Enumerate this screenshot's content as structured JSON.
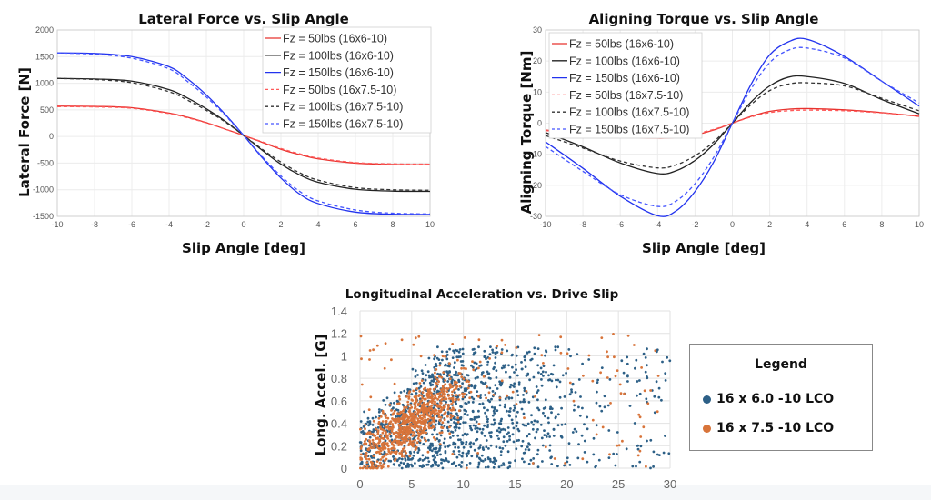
{
  "chart_data": [
    {
      "type": "line",
      "title": "Lateral Force vs. Slip Angle",
      "xlabel": "Slip Angle [deg]",
      "ylabel": "Lateral Force [N]",
      "xlim": [
        -10,
        10
      ],
      "ylim": [
        -1500,
        2000
      ],
      "xticks": [
        -10,
        -8,
        -6,
        -4,
        -2,
        0,
        2,
        4,
        6,
        8,
        10
      ],
      "yticks": [
        -1500,
        -1000,
        -500,
        0,
        500,
        1000,
        1500,
        2000
      ],
      "grid": true,
      "legend_position": "top-right",
      "x": [
        -10,
        -8,
        -6,
        -4,
        -3,
        -2,
        -1,
        0,
        1,
        2,
        3,
        4,
        6,
        8,
        10
      ],
      "series": [
        {
          "name": "Fz = 50lbs (16x6-10)",
          "color": "#e8332f",
          "dash": false,
          "values": [
            570,
            565,
            540,
            440,
            360,
            260,
            140,
            20,
            -110,
            -240,
            -340,
            -420,
            -500,
            -525,
            -530
          ]
        },
        {
          "name": "Fz = 100lbs (16x6-10)",
          "color": "#222222",
          "dash": false,
          "values": [
            1090,
            1080,
            1040,
            880,
            720,
            520,
            290,
            20,
            -260,
            -520,
            -720,
            -860,
            -990,
            -1025,
            -1030
          ]
        },
        {
          "name": "Fz = 150lbs (16x6-10)",
          "color": "#2233ee",
          "dash": false,
          "values": [
            1570,
            1560,
            1500,
            1310,
            1080,
            780,
            420,
            20,
            -400,
            -780,
            -1080,
            -1260,
            -1420,
            -1460,
            -1465
          ]
        },
        {
          "name": "Fz = 50lbs (16x7.5-10)",
          "color": "#ff5a5a",
          "dash": true,
          "values": [
            560,
            555,
            530,
            430,
            350,
            255,
            140,
            20,
            -100,
            -225,
            -325,
            -405,
            -490,
            -515,
            -520
          ]
        },
        {
          "name": "Fz = 100lbs (16x7.5-10)",
          "color": "#333333",
          "dash": true,
          "values": [
            1090,
            1070,
            1010,
            840,
            680,
            490,
            275,
            20,
            -240,
            -480,
            -680,
            -820,
            -960,
            -1000,
            -1010
          ]
        },
        {
          "name": "Fz = 150lbs (16x7.5-10)",
          "color": "#4455ff",
          "dash": true,
          "values": [
            1570,
            1545,
            1470,
            1270,
            1030,
            740,
            400,
            20,
            -380,
            -740,
            -1030,
            -1210,
            -1380,
            -1440,
            -1455
          ]
        }
      ]
    },
    {
      "type": "line",
      "title": "Aligning Torque vs. Slip Angle",
      "xlabel": "Slip Angle [deg]",
      "ylabel": "Aligning Torque [Nm]",
      "xlim": [
        -10,
        10
      ],
      "ylim": [
        -30,
        30
      ],
      "xticks": [
        -10,
        -8,
        -6,
        -4,
        -2,
        0,
        2,
        4,
        6,
        8,
        10
      ],
      "yticks": [
        -30,
        -20,
        -10,
        0,
        10,
        20,
        30
      ],
      "grid": true,
      "legend_position": "top-left",
      "x": [
        -10,
        -8,
        -6,
        -4,
        -3,
        -2,
        -1,
        0,
        1,
        2,
        3,
        4,
        6,
        8,
        10
      ],
      "series": [
        {
          "name": "Fz = 50lbs (16x6-10)",
          "color": "#e8332f",
          "dash": false,
          "values": [
            -2.2,
            -3.4,
            -4.4,
            -4.8,
            -4.6,
            -3.8,
            -2.2,
            0,
            2.2,
            3.8,
            4.5,
            4.7,
            4.3,
            3.4,
            2.2
          ]
        },
        {
          "name": "Fz = 100lbs (16x6-10)",
          "color": "#222222",
          "dash": false,
          "values": [
            -3,
            -7.6,
            -12.8,
            -16.2,
            -15.3,
            -12,
            -6.8,
            0,
            6.8,
            12,
            14.8,
            15,
            12.8,
            7.6,
            3
          ]
        },
        {
          "name": "Fz = 150lbs (16x6-10)",
          "color": "#2233ee",
          "dash": false,
          "values": [
            -6,
            -14.5,
            -23.5,
            -29.8,
            -28.2,
            -22,
            -12.5,
            0,
            12.5,
            22,
            26.2,
            27,
            21.5,
            13.5,
            5.5
          ]
        },
        {
          "name": "Fz = 50lbs (16x7.5-10)",
          "color": "#ff5a5a",
          "dash": true,
          "values": [
            -2.4,
            -3.3,
            -4.1,
            -4.4,
            -4.2,
            -3.4,
            -2,
            0,
            2,
            3.4,
            4,
            4.2,
            4,
            3.3,
            2.3
          ]
        },
        {
          "name": "Fz = 100lbs (16x7.5-10)",
          "color": "#333333",
          "dash": true,
          "values": [
            -4,
            -8,
            -12.2,
            -14.4,
            -13.4,
            -10.5,
            -6,
            0,
            6,
            10.5,
            12.6,
            13,
            12,
            8,
            4
          ]
        },
        {
          "name": "Fz = 150lbs (16x7.5-10)",
          "color": "#4455ff",
          "dash": true,
          "values": [
            -7.5,
            -15.5,
            -23,
            -26.8,
            -25,
            -19.5,
            -11,
            0,
            11,
            19.5,
            23.5,
            24.2,
            21,
            13.5,
            6.5
          ]
        }
      ]
    },
    {
      "type": "scatter",
      "title": "Longitudinal Acceleration vs. Drive Slip",
      "xlabel": "",
      "ylabel": "Long. Accel. [G]",
      "xlim": [
        0,
        30
      ],
      "ylim": [
        0,
        1.4
      ],
      "xticks": [
        0,
        5,
        10,
        15,
        20,
        25,
        30
      ],
      "yticks": [
        "0",
        "0.2",
        "0.4",
        "0.6",
        "0.8",
        "1",
        "1.2",
        "1.4"
      ],
      "grid": true,
      "legend_position": "right",
      "legend_title": "Legend",
      "series": [
        {
          "name": "16 x 6.0 -10 LCO",
          "color": "#2d6087",
          "count_estimate": 2200,
          "x_center": 9,
          "x_spread": 6,
          "y_center": 0.35,
          "y_spread": 0.2,
          "x_max": 30,
          "y_max": 1.08
        },
        {
          "name": "16 x 7.5 -10 LCO",
          "color": "#d8743a",
          "count_estimate": 1500,
          "x_center": 5,
          "x_spread": 2.5,
          "y_center": 0.42,
          "y_spread": 0.18,
          "x_max": 29.5,
          "y_max": 1.2
        }
      ]
    }
  ]
}
